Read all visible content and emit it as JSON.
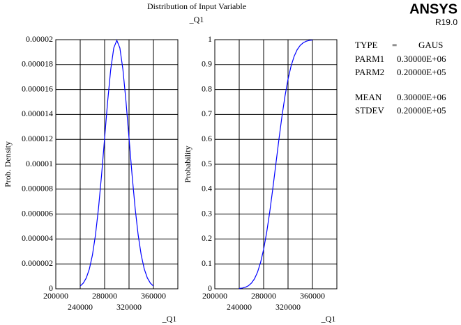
{
  "title": "Distribution of Input Variable",
  "subtitle": "_Q1",
  "logo": "ANSYS",
  "version": "R19.0",
  "info": [
    [
      "TYPE",
      "=",
      "GAUS"
    ],
    [
      "PARM1",
      "0.30000E+06"
    ],
    [
      "PARM2",
      "0.20000E+05"
    ],
    [
      "MEAN",
      "0.30000E+06"
    ],
    [
      "STDEV",
      "0.20000E+05"
    ]
  ],
  "chart_data": [
    {
      "type": "line",
      "xlabel": "_Q1",
      "ylabel": "Prob. Density",
      "color": "#0000ff",
      "grid": true,
      "xlim": [
        200000,
        400000
      ],
      "xticks": [
        200000,
        240000,
        280000,
        320000,
        360000
      ],
      "ylim": [
        0,
        2e-05
      ],
      "yticks": [
        0,
        2e-06,
        4e-06,
        6e-06,
        8e-06,
        1e-05,
        1.2e-05,
        1.4e-05,
        1.6e-05,
        1.8e-05,
        2e-05
      ],
      "x": [
        240000,
        245000,
        250000,
        255000,
        260000,
        265000,
        270000,
        275000,
        280000,
        285000,
        290000,
        295000,
        300000,
        305000,
        310000,
        315000,
        320000,
        325000,
        330000,
        335000,
        340000,
        345000,
        350000,
        355000,
        360000
      ],
      "values": [
        2.216e-07,
        4.546e-07,
        8.764e-07,
        1.587e-06,
        2.6995e-06,
        4.315e-06,
        6.476e-06,
        9.132e-06,
        1.2098e-05,
        1.5056e-05,
        1.7603e-05,
        1.9333e-05,
        1.9947e-05,
        1.9333e-05,
        1.7603e-05,
        1.5056e-05,
        1.2098e-05,
        9.132e-06,
        6.476e-06,
        4.315e-06,
        2.6995e-06,
        1.587e-06,
        8.764e-07,
        4.546e-07,
        2.216e-07
      ]
    },
    {
      "type": "line",
      "xlabel": "_Q1",
      "ylabel": "Probability",
      "color": "#0000ff",
      "grid": true,
      "xlim": [
        200000,
        400000
      ],
      "xticks": [
        200000,
        240000,
        280000,
        320000,
        360000
      ],
      "ylim": [
        0,
        1
      ],
      "yticks": [
        0,
        0.1,
        0.2,
        0.3,
        0.4,
        0.5,
        0.6,
        0.7,
        0.8,
        0.9,
        1
      ],
      "x": [
        240000,
        245000,
        250000,
        255000,
        260000,
        265000,
        270000,
        275000,
        280000,
        285000,
        290000,
        295000,
        300000,
        305000,
        310000,
        315000,
        320000,
        325000,
        330000,
        335000,
        340000,
        345000,
        350000,
        355000,
        360000
      ],
      "values": [
        0.00135,
        0.00298,
        0.00621,
        0.01222,
        0.02275,
        0.04006,
        0.06681,
        0.10565,
        0.15866,
        0.22663,
        0.30854,
        0.40129,
        0.5,
        0.59871,
        0.69146,
        0.77337,
        0.84134,
        0.89435,
        0.93319,
        0.95994,
        0.97725,
        0.98778,
        0.99379,
        0.99702,
        0.99865
      ]
    }
  ]
}
